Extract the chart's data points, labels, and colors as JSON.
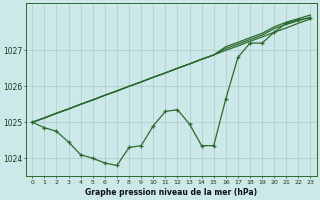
{
  "hours": [
    0,
    1,
    2,
    3,
    4,
    5,
    6,
    7,
    8,
    9,
    10,
    11,
    12,
    13,
    14,
    15,
    16,
    17,
    18,
    19,
    20,
    21,
    22,
    23
  ],
  "line_straight": [
    1025.0,
    1025.12,
    1025.25,
    1025.37,
    1025.5,
    1025.62,
    1025.75,
    1025.87,
    1026.0,
    1026.12,
    1026.25,
    1026.37,
    1026.5,
    1026.62,
    1026.75,
    1026.87,
    1027.0,
    1027.12,
    1027.25,
    1027.37,
    1027.5,
    1027.62,
    1027.75,
    1027.87
  ],
  "line_jagged": [
    1025.0,
    1024.85,
    1024.75,
    1024.45,
    1024.1,
    1024.0,
    1023.87,
    1023.8,
    1024.3,
    1024.35,
    1024.9,
    1025.3,
    1025.35,
    1024.95,
    1024.35,
    1024.35,
    1025.65,
    1026.8,
    1027.2,
    1027.2,
    1027.5,
    1027.75,
    1027.85,
    1027.9
  ],
  "line_upper1": [
    1025.0,
    1025.12,
    1025.25,
    1025.37,
    1025.5,
    1025.62,
    1025.75,
    1025.87,
    1026.0,
    1026.12,
    1026.25,
    1026.37,
    1026.5,
    1026.62,
    1026.75,
    1026.87,
    1027.05,
    1027.17,
    1027.3,
    1027.42,
    1027.6,
    1027.72,
    1027.82,
    1027.92
  ],
  "line_upper2": [
    1025.0,
    1025.12,
    1025.25,
    1025.37,
    1025.5,
    1025.62,
    1025.75,
    1025.87,
    1026.0,
    1026.12,
    1026.25,
    1026.37,
    1026.5,
    1026.62,
    1026.75,
    1026.87,
    1027.1,
    1027.22,
    1027.35,
    1027.47,
    1027.65,
    1027.78,
    1027.88,
    1027.98
  ],
  "line_color": "#2d6a2d",
  "bg_color": "#cce8e8",
  "grid_color": "#a8cccc",
  "axis_label": "Graphe pression niveau de la mer (hPa)",
  "yticks": [
    1024,
    1025,
    1026,
    1027
  ],
  "ylim": [
    1023.5,
    1028.3
  ],
  "xlim": [
    -0.5,
    23.5
  ]
}
